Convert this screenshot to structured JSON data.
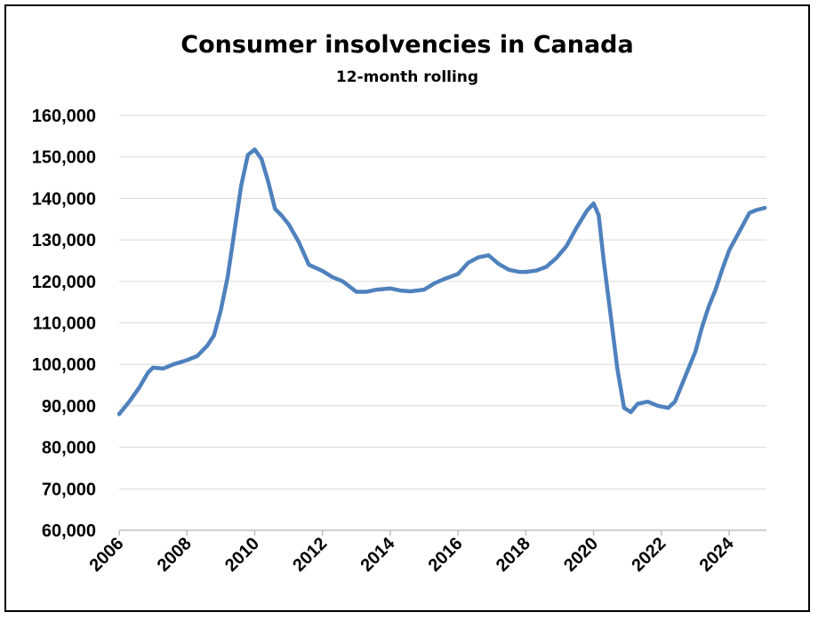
{
  "chart_data": {
    "type": "line",
    "title": "Consumer insolvencies in Canada",
    "subtitle": "12-month rolling",
    "xlabel": "",
    "ylabel": "",
    "xlim": [
      2006,
      2025.1
    ],
    "ylim": [
      60000,
      160000
    ],
    "x_ticks": [
      2006,
      2008,
      2010,
      2012,
      2014,
      2016,
      2018,
      2020,
      2022,
      2024
    ],
    "y_ticks": [
      60000,
      70000,
      80000,
      90000,
      100000,
      110000,
      120000,
      130000,
      140000,
      150000,
      160000
    ],
    "y_tick_labels": [
      "60,000",
      "70,000",
      "80,000",
      "90,000",
      "100,000",
      "110,000",
      "120,000",
      "130,000",
      "140,000",
      "150,000",
      "160,000"
    ],
    "grid": true,
    "line_color": "#4F81BD",
    "series": [
      {
        "name": "Consumer insolvencies",
        "x": [
          2006.0,
          2006.3,
          2006.6,
          2006.85,
          2007.0,
          2007.3,
          2007.6,
          2008.0,
          2008.3,
          2008.6,
          2008.8,
          2009.0,
          2009.2,
          2009.4,
          2009.6,
          2009.8,
          2010.0,
          2010.2,
          2010.4,
          2010.6,
          2010.8,
          2011.0,
          2011.3,
          2011.6,
          2012.0,
          2012.3,
          2012.6,
          2013.0,
          2013.3,
          2013.6,
          2014.0,
          2014.3,
          2014.6,
          2015.0,
          2015.3,
          2015.6,
          2016.0,
          2016.3,
          2016.6,
          2016.9,
          2017.2,
          2017.5,
          2017.8,
          2018.0,
          2018.3,
          2018.6,
          2018.9,
          2019.2,
          2019.5,
          2019.8,
          2020.0,
          2020.15,
          2020.3,
          2020.5,
          2020.7,
          2020.9,
          2021.1,
          2021.3,
          2021.6,
          2021.9,
          2022.2,
          2022.4,
          2022.6,
          2022.8,
          2023.0,
          2023.2,
          2023.4,
          2023.6,
          2023.8,
          2024.0,
          2024.2,
          2024.4,
          2024.6,
          2024.8,
          2025.05
        ],
        "y": [
          88000,
          91000,
          94500,
          98000,
          99200,
          99000,
          100000,
          101000,
          102000,
          104500,
          107000,
          113000,
          121000,
          132000,
          143000,
          150500,
          151800,
          149500,
          144000,
          137500,
          135800,
          133800,
          129500,
          124000,
          122500,
          121000,
          120000,
          117500,
          117500,
          118000,
          118300,
          117800,
          117600,
          118000,
          119500,
          120600,
          121800,
          124500,
          125800,
          126300,
          124200,
          122800,
          122300,
          122300,
          122600,
          123500,
          125600,
          128500,
          133000,
          137000,
          138800,
          136000,
          125000,
          112000,
          99000,
          89500,
          88500,
          90500,
          91000,
          90000,
          89500,
          91000,
          95000,
          99000,
          103000,
          109000,
          114000,
          118000,
          123000,
          127500,
          130500,
          133500,
          136500,
          137200,
          137700
        ]
      }
    ]
  }
}
